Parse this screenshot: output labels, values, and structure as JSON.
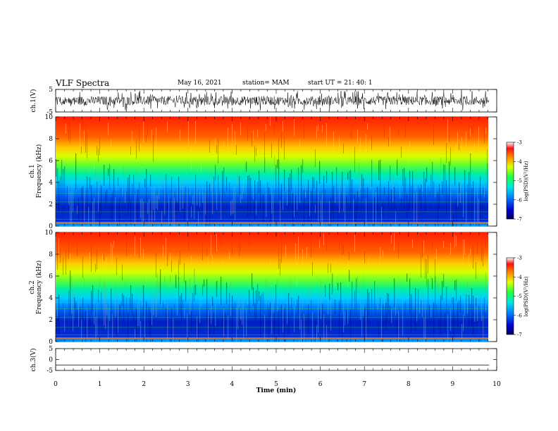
{
  "header": {
    "title": "VLF Spectra",
    "date": "May 16, 2021",
    "station": "station= MAM",
    "start": "start  UT =   21: 40: 1"
  },
  "chart_data": [
    {
      "type": "line",
      "name": "ch1-waveform",
      "ylabel": "ch.1(V)",
      "ylim": [
        -5,
        5
      ],
      "yticks": [
        "5",
        "-5"
      ],
      "xlim": [
        0,
        10
      ],
      "x_data_extent": [
        0,
        9.83
      ],
      "description_values": {
        "amplitude_range": [
          -5,
          5
        ]
      }
    },
    {
      "type": "heatmap",
      "name": "ch1-spectrogram",
      "ylabel": "ch.1\nFrequency  (kHz)",
      "ylim": [
        0,
        10
      ],
      "yticks": [
        "0",
        "2",
        "4",
        "6",
        "8",
        "10"
      ],
      "xlim": [
        0,
        10
      ],
      "x_data_extent": [
        0,
        9.83
      ],
      "colorbar": {
        "label": "log(PSD)(V²/Hz)",
        "range": [
          -7,
          -3
        ],
        "ticks": [
          "-3",
          "-4",
          "-5",
          "-6",
          "-7"
        ]
      }
    },
    {
      "type": "heatmap",
      "name": "ch2-spectrogram",
      "ylabel": "ch.2\nFrequency  (kHz)",
      "ylim": [
        0,
        10
      ],
      "yticks": [
        "0",
        "2",
        "4",
        "6",
        "8",
        "10"
      ],
      "xlim": [
        0,
        10
      ],
      "x_data_extent": [
        0,
        9.83
      ],
      "colorbar": {
        "label": "log(PSD)(V²/Hz)",
        "range": [
          -7,
          -3
        ],
        "ticks": [
          "-3",
          "-4",
          "-5",
          "-6",
          "-7"
        ]
      }
    },
    {
      "type": "line",
      "name": "ch3-waveform",
      "ylabel": "ch.3(V)",
      "ylim": [
        -5,
        5
      ],
      "yticks": [
        "5",
        "0",
        "-5"
      ],
      "xlim": [
        0,
        10
      ],
      "x_data_extent": [
        0,
        9.83
      ],
      "values_constant": -2.5,
      "xlabel": "Time  (min)",
      "xticks": [
        "0",
        "1",
        "2",
        "3",
        "4",
        "5",
        "6",
        "7",
        "8",
        "9",
        "10"
      ]
    }
  ],
  "colors": {
    "colormap": [
      "#0000a0",
      "#0030ff",
      "#00c8ff",
      "#00e8a0",
      "#40ff40",
      "#c8ff00",
      "#ffe000",
      "#ff8000",
      "#ff2000"
    ]
  }
}
